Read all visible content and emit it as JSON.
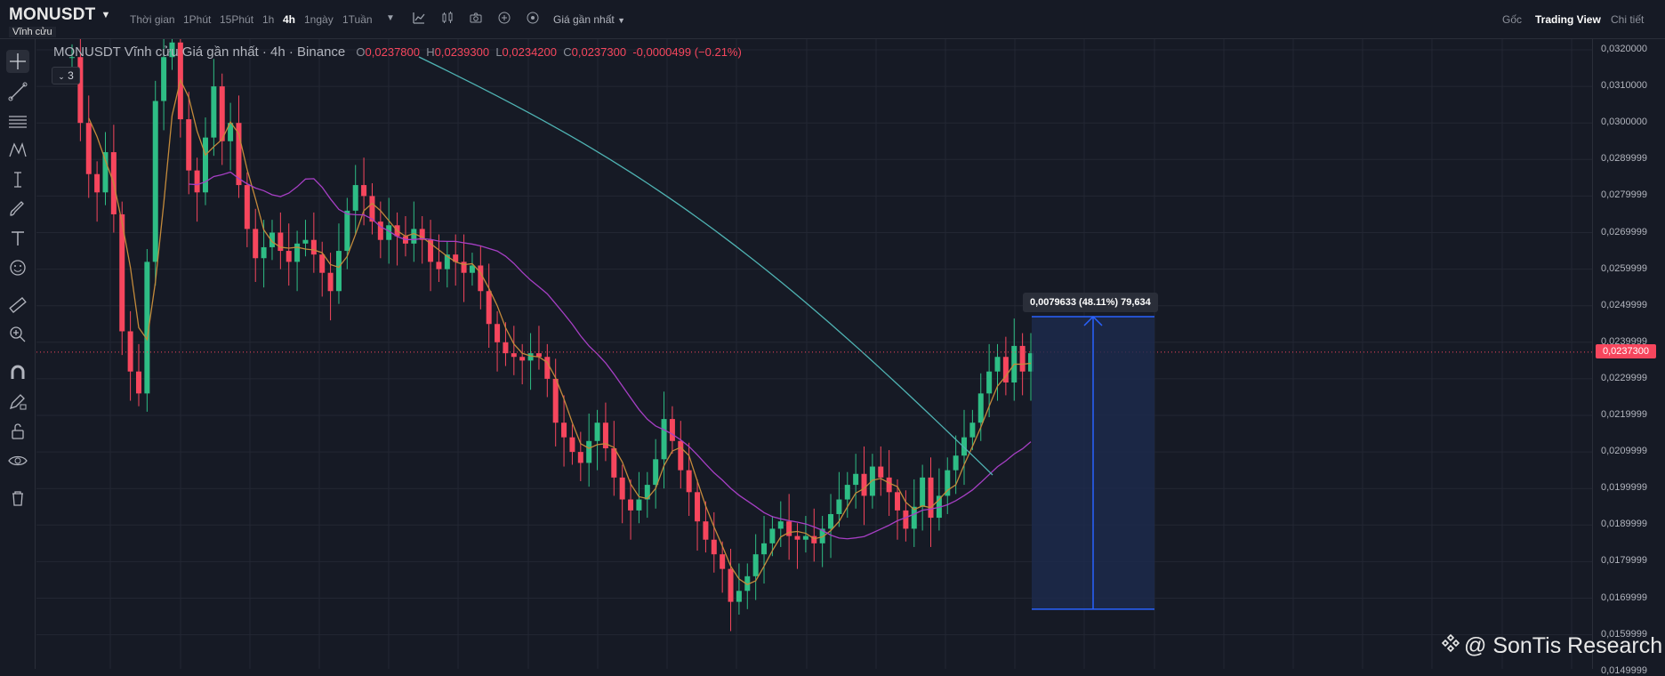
{
  "topbar": {
    "symbol": "MONUSDT",
    "perp_tag": "Vĩnh cửu",
    "timeframes": [
      "Thời gian",
      "1Phút",
      "15Phút",
      "1h",
      "4h",
      "1ngày",
      "1Tuần"
    ],
    "active_timeframe": "4h",
    "price_type": "Giá gần nhất",
    "right_tabs": [
      "Gốc",
      "Trading View",
      "Chi tiết"
    ],
    "active_right_tab": "Trading View"
  },
  "left_toolbar": {
    "icons": [
      "crosshair-icon",
      "trend-line-icon",
      "horizontal-lines-icon",
      "pattern-icon",
      "measure-tool-icon",
      "brush-icon",
      "text-icon",
      "emoji-icon",
      "ruler-icon",
      "zoom-in-icon",
      "magnet-icon",
      "lock-pencil-icon",
      "unlock-icon",
      "eye-icon",
      "trash-icon"
    ]
  },
  "legend": {
    "title": "MONUSDT Vĩnh cửu Giá gần nhất · 4h · Binance",
    "o_label": "O",
    "o": "0,0237800",
    "h_label": "H",
    "h": "0,0239300",
    "l_label": "L",
    "l": "0,0234200",
    "c_label": "C",
    "c": "0,0237300",
    "change": "-0,0000499 (−0.21%)",
    "indicator_count": "3"
  },
  "price_axis": {
    "labels": [
      "0,0320000",
      "0,0310000",
      "0,0300000",
      "0,0289999",
      "0,0279999",
      "0,0269999",
      "0,0259999",
      "0,0249999",
      "0,0239999",
      "0,0229999",
      "0,0219999",
      "0,0209999",
      "0,0199999",
      "0,0189999",
      "0,0179999",
      "0,0169999",
      "0,0159999",
      "0,0149999"
    ],
    "current_price": "0,0237300"
  },
  "measure": {
    "label": "0,0079633 (48.11%) 79,634"
  },
  "watermark": "@ SonTis Research",
  "colors": {
    "background": "#161a25",
    "up": "#2ebd85",
    "down": "#f6465d",
    "ma_fast": "#c38a3b",
    "ma_mid": "#a63fc4",
    "ma_slow": "#4fb3b3",
    "measure_fill": "#1d2a4e",
    "measure_line": "#2962ff"
  }
}
